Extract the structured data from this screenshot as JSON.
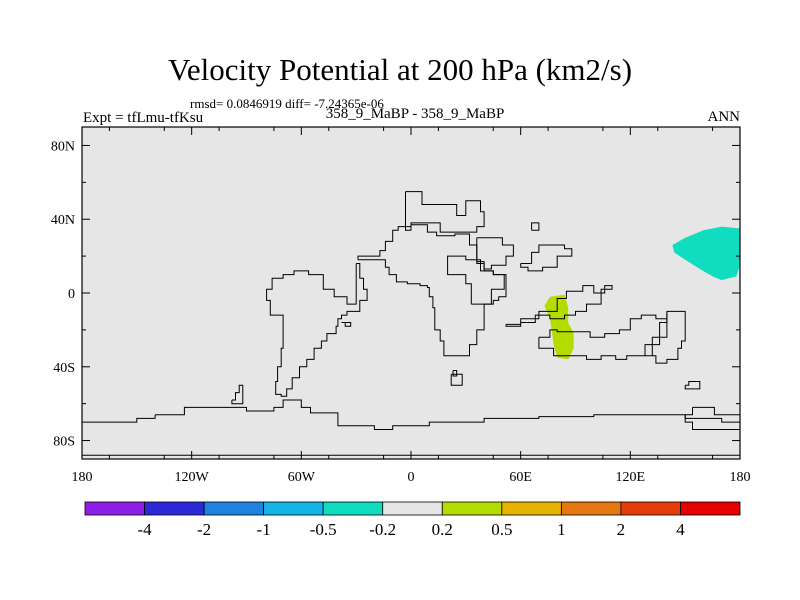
{
  "chart_data": {
    "type": "heatmap",
    "title": "Velocity Potential at 200 hPa (km2/s)",
    "stats_text": "rmsd= 0.0846919 diff= -7.24365e-06",
    "experiment_text": "Expt = tfLmu-tfKsu",
    "subtitle": "358_9_MaBP - 358_9_MaBP",
    "season": "ANN",
    "xlim": [
      -180,
      180
    ],
    "ylim": [
      -90,
      90
    ],
    "x_ticks": [
      {
        "value": -180,
        "label": "180"
      },
      {
        "value": -120,
        "label": "120W"
      },
      {
        "value": -60,
        "label": "60W"
      },
      {
        "value": 0,
        "label": "0"
      },
      {
        "value": 60,
        "label": "60E"
      },
      {
        "value": 120,
        "label": "120E"
      },
      {
        "value": 180,
        "label": "180"
      }
    ],
    "y_ticks": [
      {
        "value": 80,
        "label": "80N"
      },
      {
        "value": 40,
        "label": "40N"
      },
      {
        "value": 0,
        "label": "0"
      },
      {
        "value": -40,
        "label": "40S"
      },
      {
        "value": -80,
        "label": "80S"
      }
    ],
    "colorbar": {
      "colors": [
        "#8c1ee6",
        "#2d28d8",
        "#1e82e0",
        "#14b4e6",
        "#10dcc0",
        "#e6e6e6",
        "#b4dc00",
        "#e6b400",
        "#e67814",
        "#e63c0a",
        "#e60000"
      ],
      "boundary_labels": [
        "-4",
        "-2",
        "-1",
        "-0.5",
        "-0.2",
        "0.2",
        "0.5",
        "1",
        "2",
        "4"
      ]
    },
    "background_color": "#e6e6e6",
    "anomaly_regions": [
      {
        "name": "positive-anomaly-indian-ocean",
        "color": "#b4dc00",
        "bin": "0.2 to 0.5",
        "points": [
          [
            76,
            -2
          ],
          [
            84,
            -1
          ],
          [
            86,
            -8
          ],
          [
            86,
            -16
          ],
          [
            89,
            -22
          ],
          [
            89,
            -30
          ],
          [
            86,
            -36
          ],
          [
            80,
            -35
          ],
          [
            78,
            -28
          ],
          [
            77,
            -20
          ],
          [
            76,
            -14
          ],
          [
            73,
            -7
          ]
        ]
      },
      {
        "name": "negative-anomaly-north-pacific",
        "color": "#10dcc0",
        "bin": "-0.5 to -0.2",
        "points": [
          [
            143,
            26
          ],
          [
            150,
            30
          ],
          [
            160,
            34
          ],
          [
            170,
            36
          ],
          [
            180,
            35
          ],
          [
            180,
            15
          ],
          [
            178,
            9
          ],
          [
            170,
            7
          ],
          [
            165,
            9
          ],
          [
            158,
            13
          ],
          [
            150,
            18
          ],
          [
            144,
            22
          ]
        ]
      }
    ],
    "coastlines": [
      [
        [
          -3,
          55
        ],
        [
          6,
          55
        ],
        [
          6,
          48
        ],
        [
          25,
          48
        ],
        [
          25,
          42
        ],
        [
          30,
          42
        ],
        [
          30,
          50
        ],
        [
          36,
          50
        ],
        [
          38,
          44
        ],
        [
          40,
          36
        ],
        [
          36,
          33
        ],
        [
          20,
          33
        ],
        [
          16,
          38
        ],
        [
          8,
          38
        ],
        [
          0,
          34
        ],
        [
          -3,
          34
        ],
        [
          -3,
          55
        ]
      ],
      [
        [
          -29,
          18
        ],
        [
          -17,
          18
        ],
        [
          -14,
          14
        ],
        [
          -12,
          10
        ],
        [
          -8,
          6
        ],
        [
          -2,
          5
        ],
        [
          5,
          4
        ],
        [
          9,
          3
        ],
        [
          10,
          -2
        ],
        [
          12,
          -8
        ],
        [
          13,
          -14
        ],
        [
          13,
          -20
        ],
        [
          16,
          -26
        ],
        [
          18,
          -34
        ],
        [
          24,
          -34
        ],
        [
          32,
          -28
        ],
        [
          36,
          -20
        ],
        [
          40,
          -14
        ],
        [
          40,
          -6
        ],
        [
          44,
          2
        ],
        [
          51,
          10
        ],
        [
          45,
          12
        ],
        [
          40,
          16
        ],
        [
          36,
          26
        ],
        [
          32,
          32
        ],
        [
          24,
          31
        ],
        [
          14,
          33
        ],
        [
          9,
          37
        ],
        [
          0,
          36
        ],
        [
          -7,
          34
        ],
        [
          -10,
          28
        ],
        [
          -14,
          23
        ],
        [
          -17,
          20
        ],
        [
          -29,
          18
        ]
      ],
      [
        [
          -30,
          16
        ],
        [
          -28,
          8
        ],
        [
          -26,
          2
        ],
        [
          -24,
          -4
        ],
        [
          -28,
          -10
        ],
        [
          -35,
          -12
        ],
        [
          -38,
          -14
        ],
        [
          -40,
          -18
        ],
        [
          -41,
          -22
        ],
        [
          -46,
          -26
        ],
        [
          -49,
          -30
        ],
        [
          -53,
          -36
        ],
        [
          -57,
          -40
        ],
        [
          -61,
          -46
        ],
        [
          -65,
          -52
        ],
        [
          -68,
          -56
        ],
        [
          -71,
          -55
        ],
        [
          -74,
          -48
        ],
        [
          -73,
          -40
        ],
        [
          -71,
          -30
        ],
        [
          -70,
          -22
        ],
        [
          -70,
          -12
        ],
        [
          -77,
          -4
        ],
        [
          -79,
          2
        ],
        [
          -76,
          8
        ],
        [
          -70,
          10
        ],
        [
          -64,
          12
        ],
        [
          -56,
          10
        ],
        [
          -48,
          2
        ],
        [
          -42,
          -2
        ],
        [
          -35,
          -6
        ],
        [
          -30,
          16
        ]
      ],
      [
        [
          -140,
          -66
        ],
        [
          -130,
          -66
        ],
        [
          -124,
          -62
        ],
        [
          -110,
          -62
        ],
        [
          -90,
          -64
        ],
        [
          -75,
          -62
        ],
        [
          -70,
          -58
        ],
        [
          -64,
          -58
        ],
        [
          -60,
          -62
        ],
        [
          -55,
          -65
        ],
        [
          -40,
          -72
        ],
        [
          -20,
          -74
        ],
        [
          -10,
          -72
        ],
        [
          10,
          -70
        ],
        [
          40,
          -68
        ],
        [
          70,
          -67
        ],
        [
          100,
          -66
        ],
        [
          125,
          -66
        ],
        [
          150,
          -68
        ],
        [
          170,
          -70
        ],
        [
          180,
          -74
        ],
        [
          180,
          -88
        ],
        [
          -180,
          -88
        ],
        [
          -180,
          -70
        ],
        [
          -165,
          -70
        ],
        [
          -150,
          -68
        ],
        [
          -140,
          -66
        ]
      ],
      [
        [
          33,
          -6
        ],
        [
          45,
          -4
        ],
        [
          48,
          -2
        ],
        [
          52,
          3
        ],
        [
          52,
          10
        ],
        [
          45,
          12
        ],
        [
          38,
          18
        ],
        [
          30,
          20
        ],
        [
          20,
          18
        ],
        [
          20,
          10
        ],
        [
          30,
          5
        ],
        [
          33,
          -6
        ]
      ],
      [
        [
          52,
          -17
        ],
        [
          60,
          -14
        ],
        [
          70,
          -10
        ],
        [
          80,
          -3
        ],
        [
          85,
          1
        ],
        [
          94,
          4
        ],
        [
          100,
          0
        ],
        [
          106,
          4
        ],
        [
          110,
          2
        ],
        [
          104,
          -6
        ],
        [
          96,
          -10
        ],
        [
          90,
          -12
        ],
        [
          84,
          -14
        ],
        [
          76,
          -12
        ],
        [
          68,
          -16
        ],
        [
          60,
          -18
        ],
        [
          56,
          -18
        ],
        [
          52,
          -17
        ]
      ],
      [
        [
          70,
          -24
        ],
        [
          76,
          -20
        ],
        [
          80,
          -21
        ],
        [
          90,
          -21
        ],
        [
          98,
          -24
        ],
        [
          106,
          -22
        ],
        [
          114,
          -20
        ],
        [
          120,
          -14
        ],
        [
          126,
          -12
        ],
        [
          134,
          -14
        ],
        [
          140,
          -10
        ],
        [
          140,
          -16
        ],
        [
          136,
          -24
        ],
        [
          132,
          -28
        ],
        [
          128,
          -34
        ],
        [
          118,
          -36
        ],
        [
          112,
          -34
        ],
        [
          104,
          -36
        ],
        [
          96,
          -34
        ],
        [
          86,
          -34
        ],
        [
          78,
          -30
        ],
        [
          70,
          -24
        ]
      ],
      [
        [
          140,
          -10
        ],
        [
          146,
          -10
        ],
        [
          150,
          -14
        ],
        [
          150,
          -20
        ],
        [
          150,
          -26
        ],
        [
          148,
          -30
        ],
        [
          146,
          -36
        ],
        [
          140,
          -38
        ],
        [
          134,
          -34
        ],
        [
          128,
          -34
        ],
        [
          132,
          -28
        ],
        [
          136,
          -24
        ],
        [
          140,
          -16
        ],
        [
          140,
          -10
        ]
      ],
      [
        [
          36,
          30
        ],
        [
          44,
          30
        ],
        [
          50,
          26
        ],
        [
          56,
          20
        ],
        [
          52,
          15
        ],
        [
          44,
          13
        ],
        [
          40,
          17
        ],
        [
          36,
          25
        ],
        [
          36,
          30
        ]
      ],
      [
        [
          60,
          16
        ],
        [
          66,
          22
        ],
        [
          70,
          26
        ],
        [
          76,
          26
        ],
        [
          84,
          24
        ],
        [
          88,
          20
        ],
        [
          80,
          14
        ],
        [
          72,
          12
        ],
        [
          64,
          14
        ],
        [
          60,
          16
        ]
      ],
      [
        [
          154,
          -62
        ],
        [
          162,
          -62
        ],
        [
          166,
          -66
        ],
        [
          176,
          -66
        ],
        [
          180,
          -68
        ],
        [
          180,
          -74
        ],
        [
          164,
          -74
        ],
        [
          154,
          -70
        ],
        [
          150,
          -66
        ],
        [
          154,
          -62
        ]
      ],
      [
        [
          -98,
          -58
        ],
        [
          -96,
          -54
        ],
        [
          -94,
          -50
        ],
        [
          -92,
          -54
        ],
        [
          -92,
          -60
        ],
        [
          -96,
          -60
        ],
        [
          -98,
          -58
        ]
      ],
      [
        [
          -38,
          -16
        ],
        [
          -36,
          -18
        ],
        [
          -33,
          -18
        ],
        [
          -33,
          -16
        ],
        [
          -38,
          -16
        ]
      ],
      [
        [
          22,
          -44
        ],
        [
          28,
          -44
        ],
        [
          28,
          -50
        ],
        [
          22,
          -50
        ],
        [
          22,
          -44
        ]
      ],
      [
        [
          150,
          -50
        ],
        [
          152,
          -48
        ],
        [
          158,
          -48
        ],
        [
          158,
          -52
        ],
        [
          150,
          -52
        ],
        [
          150,
          -50
        ]
      ],
      [
        [
          66,
          34
        ],
        [
          70,
          34
        ],
        [
          70,
          38
        ],
        [
          66,
          38
        ],
        [
          66,
          34
        ]
      ],
      [
        [
          23,
          -42
        ],
        [
          25,
          -42
        ],
        [
          25,
          -45
        ],
        [
          23,
          -45
        ],
        [
          23,
          -42
        ]
      ]
    ]
  }
}
